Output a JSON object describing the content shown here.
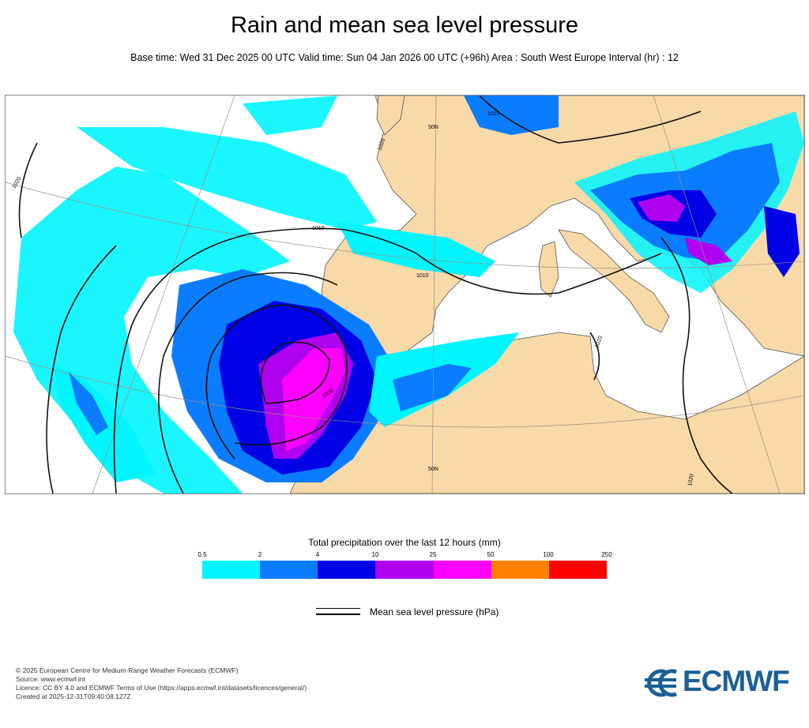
{
  "header": {
    "title": "Rain and mean sea level pressure",
    "subtitle": "Base time: Wed 31 Dec 2025 00 UTC Valid time: Sun 04 Jan 2026 00 UTC (+96h) Area : South West Europe Interval (hr) : 12"
  },
  "map": {
    "isobar_labels": [
      "1020",
      "1010",
      "1000",
      "1010",
      "1010",
      "1010",
      "1020",
      "1020"
    ],
    "latitude_labels": [
      "50N",
      "50N"
    ],
    "colors": {
      "land": "#f8d9a8",
      "sea": "#ffffff",
      "border": "#555555",
      "isobar": "#111111"
    }
  },
  "legend": {
    "title": "Total precipitation over the last 12 hours (mm)",
    "ticks": [
      "0.5",
      "2",
      "4",
      "10",
      "25",
      "50",
      "100",
      "250"
    ],
    "colors": [
      "#00f5ff",
      "#0a7cff",
      "#0000e6",
      "#b000f0",
      "#ff00ff",
      "#ff8000",
      "#ff0000"
    ],
    "isobar_label": "Mean sea level pressure (hPa)"
  },
  "footer": {
    "lines": [
      "© 2025 European Centre for Medium-Range Weather Forecasts (ECMWF)",
      "Source: www.ecmwf.int",
      "Licence: CC BY 4.0 and ECMWF Terms of Use (https://apps.ecmwf.int/datasets/licences/general/)",
      "Created at 2025-12-31T09:40:08.127Z"
    ],
    "logo_text": "ECMWF",
    "logo_icon": "ecmwf-logo-icon"
  }
}
